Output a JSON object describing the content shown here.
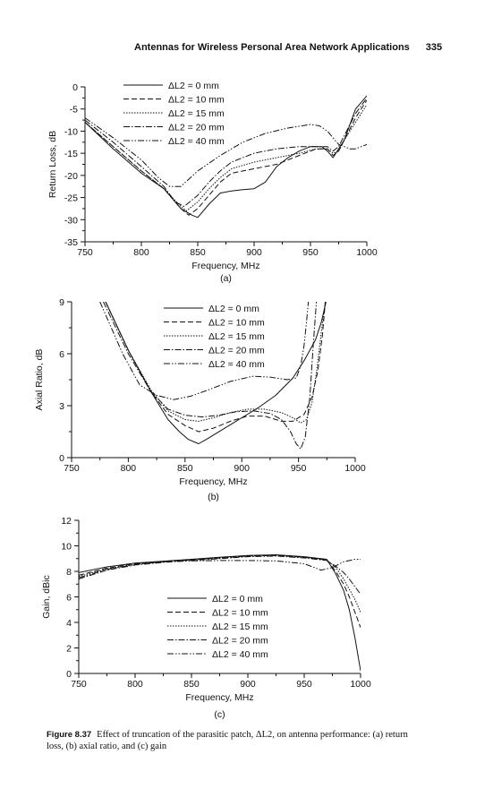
{
  "header": {
    "title": "Antennas for Wireless Personal Area Network Applications",
    "page_number": "335"
  },
  "caption": {
    "figure_label": "Figure 8.37",
    "text": "Effect of truncation of the parasitic patch, ΔL2, on antenna performance: (a) return loss, (b) axial ratio, and (c) gain"
  },
  "legend_labels": [
    "ΔL2 = 0 mm",
    "ΔL2 = 10 mm",
    "ΔL2 = 15 mm",
    "ΔL2 = 20 mm",
    "ΔL2 = 40 mm"
  ],
  "line_styles": {
    "dashes": [
      "",
      "6,3",
      "1.5,1.5",
      "7,2,1.5,2",
      "7,2,1.5,2,1.5,2"
    ],
    "color": "#111111"
  },
  "chart_data": [
    {
      "type": "line",
      "panel_label": "(a)",
      "xlabel": "Frequency, MHz",
      "ylabel": "Return Loss, dB",
      "xlim": [
        750,
        1000
      ],
      "ylim": [
        -35,
        0
      ],
      "xticks": [
        750,
        800,
        850,
        900,
        950,
        1000
      ],
      "yticks": [
        0,
        -5,
        -10,
        -15,
        -20,
        -25,
        -30,
        -35
      ],
      "grid": false,
      "legend_position": "top-center",
      "series": [
        {
          "name": "ΔL2 = 0 mm",
          "x": [
            750,
            775,
            800,
            820,
            835,
            845,
            850,
            860,
            870,
            880,
            890,
            900,
            910,
            920,
            930,
            940,
            950,
            960,
            965,
            970,
            975,
            980,
            990,
            1000
          ],
          "y": [
            -8,
            -14,
            -19.5,
            -23,
            -27.5,
            -29,
            -29.5,
            -26.5,
            -24,
            -23.5,
            -23.2,
            -23,
            -21.5,
            -18,
            -16,
            -14.5,
            -13.5,
            -13.5,
            -14.5,
            -16,
            -14,
            -12,
            -5,
            -2
          ]
        },
        {
          "name": "ΔL2 = 10 mm",
          "x": [
            750,
            775,
            800,
            820,
            835,
            842,
            850,
            860,
            870,
            880,
            900,
            920,
            940,
            955,
            965,
            970,
            975,
            980,
            990,
            1000
          ],
          "y": [
            -8,
            -13.5,
            -19,
            -23,
            -27.5,
            -29,
            -27.5,
            -24.5,
            -21.5,
            -19.5,
            -18.5,
            -17.5,
            -15.5,
            -14,
            -14,
            -15.5,
            -14.5,
            -12,
            -7,
            -3
          ]
        },
        {
          "name": "ΔL2 = 15 mm",
          "x": [
            750,
            775,
            800,
            820,
            835,
            840,
            850,
            860,
            870,
            880,
            900,
            920,
            940,
            955,
            965,
            970,
            975,
            980,
            990,
            1000
          ],
          "y": [
            -8,
            -13.5,
            -19,
            -23,
            -27,
            -28,
            -26,
            -23,
            -20.5,
            -18.5,
            -17,
            -16,
            -15,
            -14,
            -14,
            -15,
            -14.5,
            -12,
            -8,
            -4
          ]
        },
        {
          "name": "ΔL2 = 20 mm",
          "x": [
            750,
            775,
            800,
            820,
            830,
            838,
            850,
            860,
            870,
            880,
            900,
            920,
            940,
            955,
            965,
            970,
            975,
            980,
            990,
            1000
          ],
          "y": [
            -7.5,
            -12.5,
            -18,
            -22.5,
            -26,
            -27,
            -24.5,
            -21.5,
            -19,
            -17,
            -15,
            -14,
            -13.5,
            -13.5,
            -13.5,
            -14.5,
            -13.5,
            -11,
            -6,
            -2.5
          ]
        },
        {
          "name": "ΔL2 = 40 mm",
          "x": [
            750,
            775,
            800,
            815,
            825,
            835,
            850,
            870,
            890,
            910,
            930,
            950,
            958,
            965,
            975,
            980,
            985,
            990,
            1000
          ],
          "y": [
            -7,
            -11.5,
            -16.5,
            -20.5,
            -22.5,
            -22.5,
            -19,
            -15.5,
            -12.5,
            -10.5,
            -9.3,
            -8.5,
            -8.8,
            -10,
            -13,
            -13.5,
            -14,
            -14,
            -13
          ]
        }
      ]
    },
    {
      "type": "line",
      "panel_label": "(b)",
      "xlabel": "Frequency, MHz",
      "ylabel": "Axial Ratio, dB",
      "xlim": [
        750,
        1000
      ],
      "ylim": [
        0,
        9
      ],
      "xticks": [
        750,
        800,
        850,
        900,
        950,
        1000
      ],
      "yticks": [
        0,
        3,
        6,
        9
      ],
      "grid": false,
      "legend_position": "top-center",
      "series": [
        {
          "name": "ΔL2 = 0 mm",
          "x": [
            780,
            800,
            820,
            835,
            845,
            853,
            862,
            870,
            885,
            900,
            915,
            930,
            945,
            955,
            965,
            970,
            975
          ],
          "y": [
            9,
            6.2,
            3.8,
            2.2,
            1.5,
            1.05,
            0.8,
            1.1,
            1.7,
            2.3,
            2.9,
            3.6,
            4.6,
            5.6,
            6.8,
            7.8,
            9.2
          ]
        },
        {
          "name": "ΔL2 = 10 mm",
          "x": [
            780,
            800,
            820,
            835,
            850,
            862,
            875,
            890,
            905,
            920,
            935,
            945,
            955,
            962,
            967,
            971,
            974
          ],
          "y": [
            9,
            6.2,
            3.8,
            2.5,
            1.85,
            1.5,
            1.7,
            2.1,
            2.4,
            2.4,
            2.1,
            2.1,
            2.5,
            3.5,
            5,
            7,
            9.2
          ]
        },
        {
          "name": "ΔL2 = 15 mm",
          "x": [
            780,
            800,
            820,
            835,
            850,
            862,
            875,
            890,
            905,
            920,
            935,
            945,
            952,
            957,
            962,
            966,
            970,
            974
          ],
          "y": [
            9,
            6.2,
            3.9,
            2.7,
            2.2,
            2.1,
            2.3,
            2.6,
            2.8,
            2.8,
            2.6,
            2.3,
            2.0,
            2.2,
            3.2,
            5,
            7.2,
            9.2
          ]
        },
        {
          "name": "ΔL2 = 20 mm",
          "x": [
            778,
            800,
            820,
            835,
            850,
            865,
            880,
            895,
            910,
            925,
            935,
            943,
            948,
            952,
            956,
            960,
            963,
            966
          ],
          "y": [
            9,
            6,
            3.8,
            2.8,
            2.45,
            2.35,
            2.45,
            2.65,
            2.7,
            2.55,
            2.2,
            1.5,
            0.8,
            0.5,
            1.2,
            3.5,
            6.5,
            9.2
          ]
        },
        {
          "name": "ΔL2 = 40 mm",
          "x": [
            775,
            795,
            810,
            825,
            840,
            855,
            870,
            890,
            910,
            925,
            940,
            948,
            952,
            955,
            957,
            959
          ],
          "y": [
            9,
            6,
            4.2,
            3.6,
            3.35,
            3.55,
            3.9,
            4.4,
            4.7,
            4.65,
            4.5,
            4.6,
            5.3,
            6.5,
            7.8,
            9.2
          ]
        }
      ]
    },
    {
      "type": "line",
      "panel_label": "(c)",
      "xlabel": "Frequency, MHz",
      "ylabel": "Gain, dBic",
      "xlim": [
        750,
        1000
      ],
      "ylim": [
        0,
        12
      ],
      "xticks": [
        750,
        800,
        850,
        900,
        950,
        1000
      ],
      "yticks": [
        0,
        2,
        4,
        6,
        8,
        10,
        12
      ],
      "grid": false,
      "legend_position": "bottom-center",
      "series": [
        {
          "name": "ΔL2 = 0 mm",
          "x": [
            750,
            775,
            800,
            825,
            850,
            875,
            900,
            925,
            950,
            970,
            978,
            985,
            990,
            995,
            1000
          ],
          "y": [
            7.9,
            8.35,
            8.65,
            8.8,
            8.95,
            9.1,
            9.25,
            9.3,
            9.15,
            8.95,
            7.8,
            6.5,
            5,
            2.8,
            0.2
          ]
        },
        {
          "name": "ΔL2 = 10 mm",
          "x": [
            750,
            775,
            800,
            825,
            850,
            875,
            900,
            925,
            950,
            970,
            978,
            985,
            990,
            995,
            1000
          ],
          "y": [
            7.7,
            8.25,
            8.6,
            8.75,
            8.9,
            9.05,
            9.2,
            9.25,
            9.1,
            8.9,
            8,
            7,
            6,
            4.8,
            3.6
          ]
        },
        {
          "name": "ΔL2 = 15 mm",
          "x": [
            750,
            775,
            800,
            825,
            850,
            875,
            900,
            925,
            950,
            970,
            978,
            985,
            990,
            995,
            1000
          ],
          "y": [
            7.6,
            8.2,
            8.55,
            8.75,
            8.9,
            9.05,
            9.2,
            9.25,
            9.1,
            8.9,
            8.3,
            7.4,
            6.6,
            5.8,
            4.8
          ]
        },
        {
          "name": "ΔL2 = 20 mm",
          "x": [
            750,
            775,
            800,
            825,
            850,
            875,
            900,
            925,
            950,
            970,
            978,
            985,
            990,
            995,
            1000
          ],
          "y": [
            7.4,
            8.1,
            8.5,
            8.7,
            8.85,
            9.0,
            9.15,
            9.2,
            9.05,
            8.85,
            8.4,
            7.9,
            7.4,
            6.8,
            6.2
          ]
        },
        {
          "name": "ΔL2 = 40 mm",
          "x": [
            750,
            775,
            800,
            825,
            850,
            875,
            900,
            925,
            950,
            965,
            975,
            985,
            995,
            1000
          ],
          "y": [
            7.5,
            8.15,
            8.55,
            8.75,
            8.82,
            8.85,
            8.85,
            8.82,
            8.6,
            8.1,
            8.3,
            8.75,
            8.95,
            8.95
          ]
        }
      ]
    }
  ]
}
